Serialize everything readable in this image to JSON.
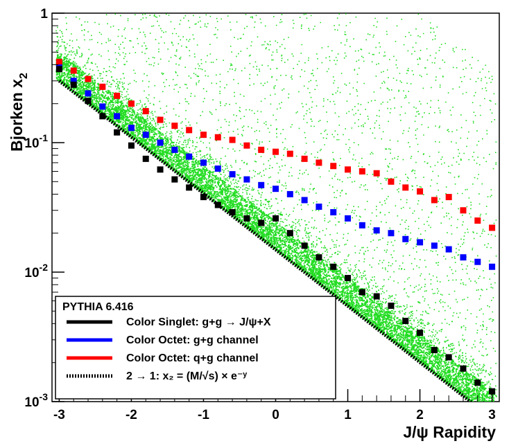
{
  "chart_data": {
    "type": "scatter",
    "title": "",
    "xlabel": "J/ψ Rapidity",
    "ylabel": "Bjorken x",
    "ylabel_subscript": "2",
    "xlim": [
      -3.1,
      3.1
    ],
    "ylim": [
      0.001,
      1
    ],
    "y_scale": "log",
    "x_ticks": [
      "-3",
      "-2",
      "-1",
      "0",
      "1",
      "2",
      "3"
    ],
    "y_ticks": [
      {
        "value": 1,
        "base": "1",
        "exp": ""
      },
      {
        "value": 0.1,
        "base": "10",
        "exp": "-1"
      },
      {
        "value": 0.01,
        "base": "10",
        "exp": "-2"
      },
      {
        "value": 0.001,
        "base": "10",
        "exp": "-3"
      }
    ],
    "legend": {
      "header": "PYTHIA 6.416",
      "entries": [
        {
          "label": "Color Singlet:  g+g → J/ψ+X",
          "color": "#000000",
          "style": "solid"
        },
        {
          "label": "Color Octet:  g+g channel",
          "color": "#0000ff",
          "style": "solid"
        },
        {
          "label": "Color Octet:  q+g channel",
          "color": "#ff0000",
          "style": "solid"
        },
        {
          "label": "2 → 1:  x₂ = (M/√s) × e⁻ʸ",
          "color": "#000000",
          "style": "dotted"
        }
      ],
      "placement": "bottom-left"
    },
    "scatter_color": "#22dd22",
    "series": [
      {
        "name": "Color Octet: q+g channel",
        "color": "#ff0000",
        "x": [
          -3.0,
          -2.8,
          -2.6,
          -2.4,
          -2.2,
          -2.0,
          -1.8,
          -1.6,
          -1.4,
          -1.2,
          -1.0,
          -0.8,
          -0.6,
          -0.4,
          -0.2,
          0.0,
          0.2,
          0.4,
          0.6,
          0.8,
          1.0,
          1.2,
          1.4,
          1.6,
          1.8,
          2.0,
          2.2,
          2.4,
          2.6,
          2.8,
          3.0
        ],
        "y": [
          0.42,
          0.36,
          0.31,
          0.27,
          0.23,
          0.2,
          0.175,
          0.15,
          0.135,
          0.125,
          0.115,
          0.11,
          0.105,
          0.095,
          0.088,
          0.085,
          0.082,
          0.075,
          0.07,
          0.066,
          0.062,
          0.06,
          0.058,
          0.05,
          0.045,
          0.042,
          0.036,
          0.038,
          0.03,
          0.025,
          0.022
        ]
      },
      {
        "name": "Color Octet: g+g channel",
        "color": "#0000ff",
        "x": [
          -3.0,
          -2.8,
          -2.6,
          -2.4,
          -2.2,
          -2.0,
          -1.8,
          -1.6,
          -1.4,
          -1.2,
          -1.0,
          -0.8,
          -0.6,
          -0.4,
          -0.2,
          0.0,
          0.2,
          0.4,
          0.6,
          0.8,
          1.0,
          1.2,
          1.4,
          1.6,
          1.8,
          2.0,
          2.2,
          2.4,
          2.6,
          2.8,
          3.0
        ],
        "y": [
          0.38,
          0.3,
          0.24,
          0.19,
          0.16,
          0.13,
          0.115,
          0.1,
          0.088,
          0.078,
          0.07,
          0.063,
          0.057,
          0.052,
          0.047,
          0.044,
          0.04,
          0.036,
          0.032,
          0.029,
          0.026,
          0.023,
          0.021,
          0.02,
          0.018,
          0.017,
          0.016,
          0.015,
          0.013,
          0.012,
          0.011
        ]
      },
      {
        "name": "Color Singlet: g+g → J/ψ+X",
        "color": "#000000",
        "x": [
          -3.0,
          -2.8,
          -2.6,
          -2.4,
          -2.2,
          -2.0,
          -1.8,
          -1.6,
          -1.4,
          -1.2,
          -1.0,
          -0.8,
          -0.6,
          -0.4,
          -0.2,
          0.0,
          0.2,
          0.4,
          0.6,
          0.8,
          1.0,
          1.2,
          1.4,
          1.6,
          1.8,
          2.0,
          2.2,
          2.4,
          2.6,
          2.8,
          3.0
        ],
        "y": [
          0.37,
          0.28,
          0.21,
          0.16,
          0.12,
          0.095,
          0.075,
          0.062,
          0.052,
          0.045,
          0.038,
          0.033,
          0.029,
          0.026,
          0.024,
          0.026,
          0.02,
          0.016,
          0.013,
          0.011,
          0.009,
          0.007,
          0.0065,
          0.0055,
          0.0042,
          0.0034,
          0.0025,
          0.0022,
          0.0018,
          0.0014,
          0.0012
        ]
      },
      {
        "name": "2 → 1: x2 = (M/√s) × e^-y",
        "color": "#000000",
        "style": "dotted",
        "x": [
          -3.0,
          3.0
        ],
        "y": [
          0.3,
          0.00074
        ]
      }
    ]
  }
}
